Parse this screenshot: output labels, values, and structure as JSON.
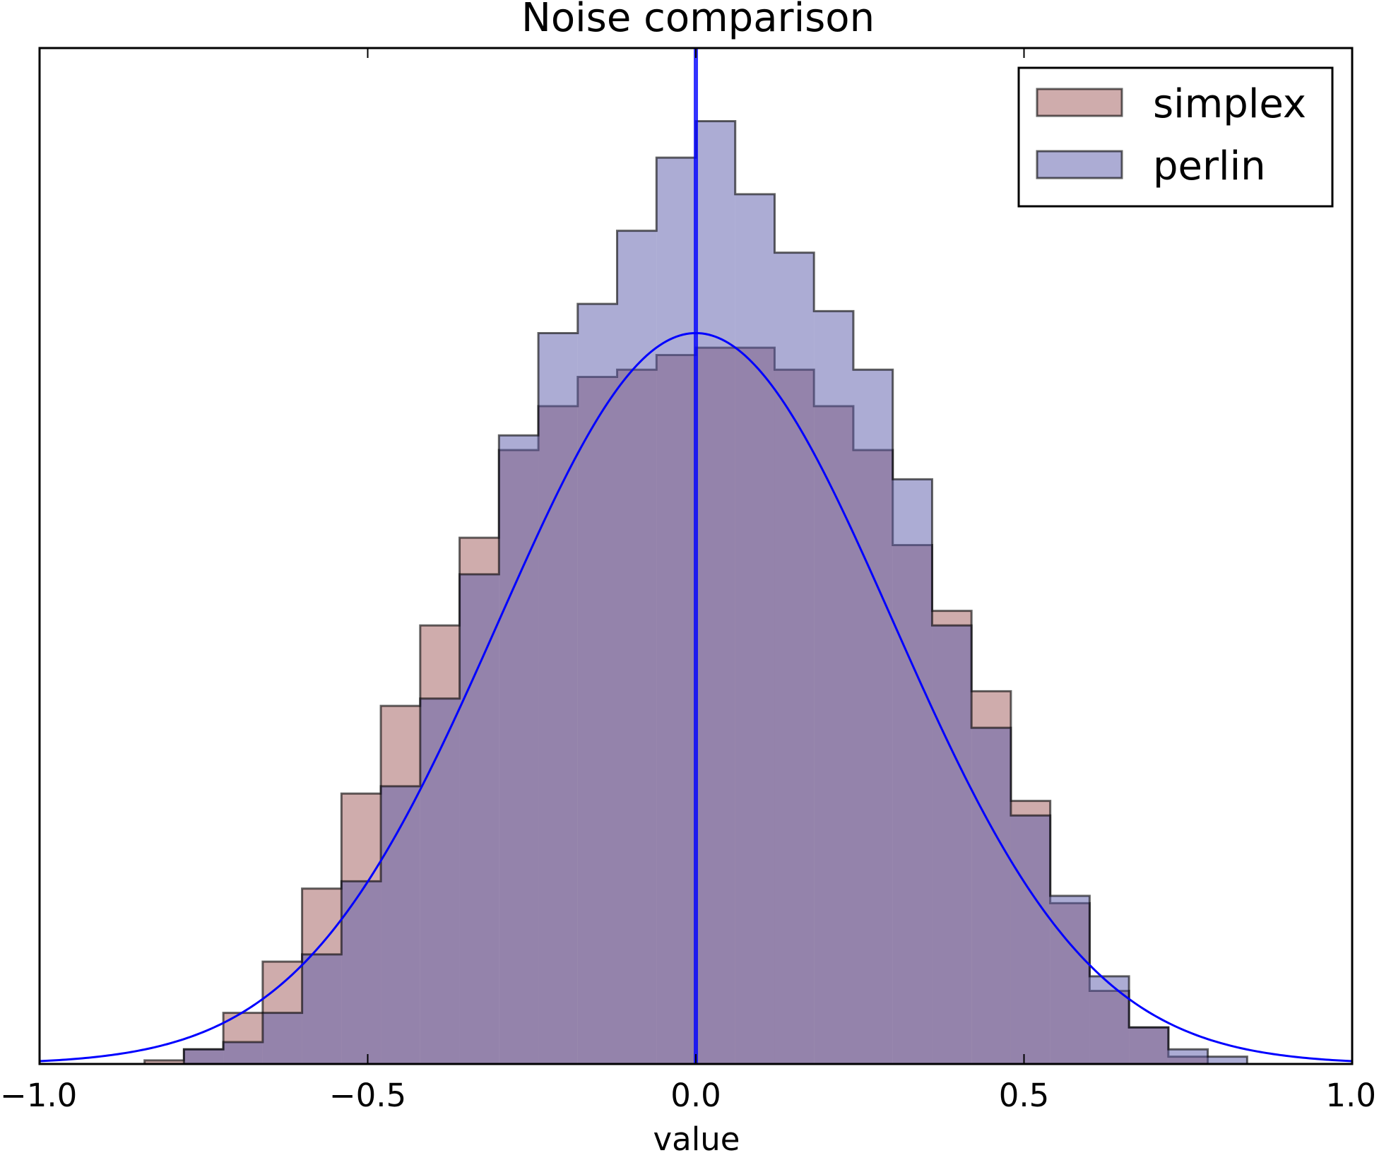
{
  "chart_data": {
    "type": "histogram",
    "title": "Noise comparison",
    "xlabel": "value",
    "ylabel": "",
    "xlim": [
      -1.0,
      1.0
    ],
    "ylim": [
      0,
      1.39
    ],
    "x_ticks": [
      -1.0,
      -0.5,
      0.0,
      0.5,
      1.0
    ],
    "x_tick_labels": [
      "−1.0",
      "−0.5",
      "0.0",
      "0.5",
      "1.0"
    ],
    "y_ticks_visible": false,
    "grid": false,
    "legend_position": "top-right",
    "colors": {
      "simplex_fill": "#a05a5a",
      "perlin_fill": "#5a5aaa",
      "edge": "#000000",
      "curve": "#0000ff",
      "vline": "#0000ff"
    },
    "series": [
      {
        "name": "simplex",
        "kind": "step-histogram",
        "bin_edges": [
          -0.92,
          -0.84,
          -0.78,
          -0.72,
          -0.66,
          -0.6,
          -0.54,
          -0.48,
          -0.42,
          -0.36,
          -0.3,
          -0.24,
          -0.18,
          -0.12,
          -0.06,
          0.0,
          0.06,
          0.12,
          0.18,
          0.24,
          0.3,
          0.36,
          0.42,
          0.48,
          0.54,
          0.6,
          0.66,
          0.72,
          0.78,
          0.84,
          0.92
        ],
        "values": [
          0.0,
          0.005,
          0.02,
          0.07,
          0.14,
          0.24,
          0.37,
          0.49,
          0.6,
          0.72,
          0.84,
          0.9,
          0.94,
          0.95,
          0.97,
          0.98,
          0.98,
          0.95,
          0.9,
          0.84,
          0.71,
          0.62,
          0.51,
          0.36,
          0.22,
          0.1,
          0.05,
          0.01,
          0.0,
          0.0
        ]
      },
      {
        "name": "perlin",
        "kind": "step-histogram",
        "bin_edges": [
          -0.92,
          -0.84,
          -0.78,
          -0.72,
          -0.66,
          -0.6,
          -0.54,
          -0.48,
          -0.42,
          -0.36,
          -0.3,
          -0.24,
          -0.18,
          -0.12,
          -0.06,
          0.0,
          0.06,
          0.12,
          0.18,
          0.24,
          0.3,
          0.36,
          0.42,
          0.48,
          0.54,
          0.6,
          0.66,
          0.72,
          0.78,
          0.84,
          0.92
        ],
        "values": [
          0.0,
          0.0,
          0.02,
          0.03,
          0.07,
          0.15,
          0.25,
          0.38,
          0.5,
          0.67,
          0.86,
          1.0,
          1.04,
          1.14,
          1.24,
          1.29,
          1.19,
          1.11,
          1.03,
          0.95,
          0.8,
          0.6,
          0.46,
          0.34,
          0.23,
          0.12,
          0.05,
          0.02,
          0.01,
          0.0
        ]
      }
    ],
    "curve": {
      "kind": "gaussian",
      "mean": 0.0,
      "sigma": 0.3,
      "peak": 1.0,
      "color": "#0000ff"
    },
    "vline": {
      "x": 0.0,
      "color": "#0000ff"
    }
  }
}
